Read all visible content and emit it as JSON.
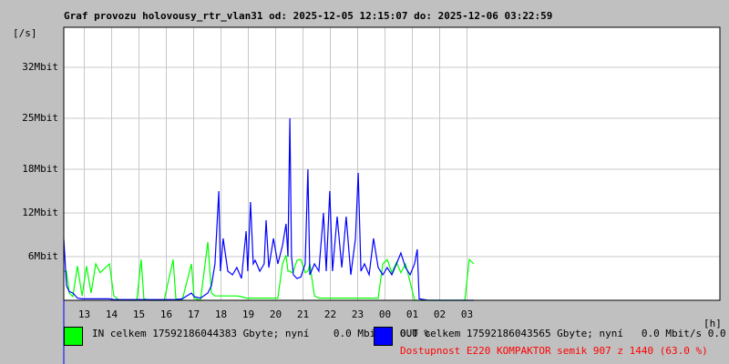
{
  "chart_data": {
    "type": "line",
    "title": "Graf provozu holovousy_rtr_vlan31 od: 2025-12-05 12:15:07 do: 2025-12-06 03:22:59",
    "y_label": "[/s]",
    "x_label": "[h]",
    "availability": "Dostupnost E220 KOMPAKTOR semik 907 z 1440 (63.0 %)",
    "xlim": [
      12.25,
      36.25
    ],
    "xticks": [
      13,
      14,
      15,
      16,
      17,
      18,
      19,
      20,
      21,
      22,
      23,
      {
        "value": 24,
        "label": "00"
      },
      {
        "value": 25,
        "label": "01"
      },
      {
        "value": 26,
        "label": "02"
      },
      {
        "value": 27,
        "label": "03"
      }
    ],
    "ylim": [
      0,
      37.5
    ],
    "yticks": [
      {
        "value": 6,
        "label": "6Mbit"
      },
      {
        "value": 12,
        "label": "12Mbit"
      },
      {
        "value": 18,
        "label": "18Mbit"
      },
      {
        "value": 25,
        "label": "25Mbit"
      },
      {
        "value": 32,
        "label": "32Mbit"
      }
    ],
    "grid": true,
    "x": [
      12.25,
      12.35,
      12.45,
      12.58,
      12.75,
      12.92,
      13.08,
      13.25,
      13.42,
      13.58,
      13.75,
      13.92,
      14.08,
      14.25,
      14.58,
      14.92,
      15.08,
      15.18,
      15.42,
      15.92,
      16.25,
      16.35,
      16.58,
      16.92,
      17.02,
      17.25,
      17.52,
      17.65,
      17.78,
      17.92,
      17.98,
      18.08,
      18.25,
      18.42,
      18.58,
      18.75,
      18.92,
      18.98,
      19.08,
      19.18,
      19.25,
      19.42,
      19.58,
      19.65,
      19.75,
      19.92,
      20.08,
      20.25,
      20.38,
      20.45,
      20.52,
      20.58,
      20.65,
      20.78,
      20.92,
      21.08,
      21.18,
      21.25,
      21.42,
      21.58,
      21.75,
      21.85,
      21.98,
      22.08,
      22.25,
      22.42,
      22.58,
      22.75,
      22.92,
      23.02,
      23.12,
      23.25,
      23.42,
      23.58,
      23.75,
      23.92,
      24.08,
      24.25,
      24.42,
      24.58,
      24.75,
      24.92,
      25.08,
      25.18,
      25.25,
      25.58,
      26.25,
      26.92,
      27.08,
      27.25
    ],
    "series": [
      {
        "name": "IN celkem 17592186044383 Gbyte; nyní    0.0 Mbit/s 0.0 %",
        "color": "#00ff00",
        "values": [
          4,
          4,
          1,
          0.5,
          4.7,
          0.6,
          4.7,
          1,
          5,
          3.8,
          4.4,
          5,
          0.6,
          0.1,
          0,
          0,
          5.6,
          0.2,
          0,
          0,
          5.6,
          0.2,
          0,
          5,
          0.3,
          0,
          8,
          1,
          0.6,
          0.6,
          0.6,
          0.6,
          0.6,
          0.6,
          0.6,
          0.5,
          0.3,
          0.3,
          0.3,
          0.3,
          0.3,
          0.3,
          0.3,
          0.3,
          0.3,
          0.3,
          0.3,
          5,
          6.2,
          4,
          4,
          3.8,
          4,
          5.5,
          5.6,
          3.8,
          4,
          5,
          0.6,
          0.3,
          0.3,
          0.3,
          0.3,
          0.3,
          0.3,
          0.3,
          0.3,
          0.3,
          0.3,
          0.3,
          0.3,
          0.3,
          0.3,
          0.3,
          0.3,
          5,
          5.6,
          3.8,
          5.2,
          3.8,
          5,
          2.5,
          0,
          0,
          0,
          0,
          0,
          0,
          5.6,
          5
        ]
      },
      {
        "name": "OUT celkem 17592186043565 Gbyte; nyní   0.0 Mbit/s 0.0 %",
        "color": "#0000ff",
        "values": [
          8.4,
          2,
          1.2,
          1,
          0.3,
          0.2,
          0.2,
          0.2,
          0.2,
          0.2,
          0.2,
          0.2,
          0.1,
          0.1,
          0.1,
          0.1,
          0.1,
          0.1,
          0.1,
          0.1,
          0.1,
          0.1,
          0.2,
          1,
          0.5,
          0.3,
          1,
          2,
          5,
          15,
          4,
          8.5,
          4,
          3.5,
          4.5,
          3,
          9.5,
          4,
          13.5,
          5,
          5.5,
          4,
          5,
          11,
          4.5,
          8.5,
          5,
          7.5,
          10.5,
          6,
          25,
          6,
          3.5,
          3,
          3.2,
          5,
          18,
          3.5,
          5,
          4,
          12,
          4,
          15,
          4,
          11.5,
          4.5,
          11.5,
          3.5,
          8.5,
          17.5,
          4,
          5,
          3.5,
          8.5,
          4.5,
          3.5,
          4.5,
          3.5,
          5,
          6.5,
          4.5,
          3.5,
          5,
          7,
          0.2,
          0,
          0,
          0,
          0,
          0
        ]
      }
    ]
  }
}
